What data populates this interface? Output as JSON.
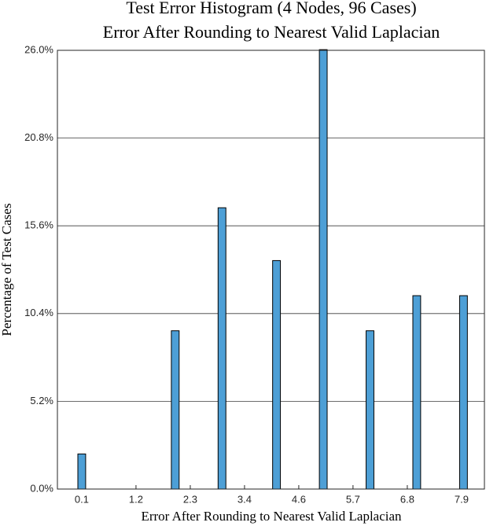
{
  "chart_data": {
    "type": "histogram",
    "title": "Test Error Histogram (4 Nodes, 96 Cases)",
    "subtitle": "Error After Rounding to Nearest Valid Laplacian",
    "x_label": "Error After Rounding to Nearest Valid Laplacian",
    "y_label": "Percentage of Test Cases",
    "bins": [
      0.02,
      0.18,
      0.34,
      0.5,
      0.66,
      0.82,
      0.98,
      1.14,
      1.3,
      1.46,
      1.62,
      1.78,
      1.94,
      2.1,
      2.26,
      2.42,
      2.58,
      2.74,
      2.9,
      3.06,
      3.22,
      3.38,
      3.54,
      3.7,
      3.86,
      4.02,
      4.18,
      4.34,
      4.5,
      4.66,
      4.82,
      4.98,
      5.14,
      5.3,
      5.46,
      5.62,
      5.78,
      5.94,
      6.1,
      6.26,
      6.42,
      6.58,
      6.74,
      6.9,
      7.06,
      7.22,
      7.38,
      7.54,
      7.7,
      7.86,
      8.02
    ],
    "values": [
      2.08,
      0,
      0,
      0,
      0,
      0,
      0,
      0,
      0,
      0,
      0,
      0,
      9.38,
      0,
      0,
      0,
      0,
      0,
      16.67,
      0,
      0,
      0,
      0,
      0,
      0,
      13.54,
      0,
      0,
      0,
      0,
      0,
      26.04,
      0,
      0,
      0,
      0,
      0,
      9.38,
      0,
      0,
      0,
      0,
      0,
      11.46,
      0,
      0,
      0,
      0,
      0,
      11.46
    ],
    "color": "#4d9fd6",
    "xlim": [
      -0.4,
      8.37
    ],
    "xticks": [
      0.1,
      {
        "value": 1.214,
        "label": "1.2"
      },
      {
        "value": 2.329,
        "label": "2.3"
      },
      {
        "value": 3.443,
        "label": "3.4"
      },
      {
        "value": 4.557,
        "label": "4.6"
      },
      {
        "value": 5.671,
        "label": "5.7"
      },
      {
        "value": 6.786,
        "label": "6.8"
      },
      7.9
    ],
    "ylim": [
      0,
      26
    ],
    "yticks": [
      {
        "value": 0,
        "label": "0.0%"
      },
      {
        "value": 5.2,
        "label": "5.2%"
      },
      {
        "value": 10.4,
        "label": "10.4%"
      },
      {
        "value": 15.6,
        "label": "15.6%"
      },
      {
        "value": 20.8,
        "label": "20.8%"
      },
      {
        "value": 26,
        "label": "26.0%"
      }
    ],
    "grid": true
  }
}
